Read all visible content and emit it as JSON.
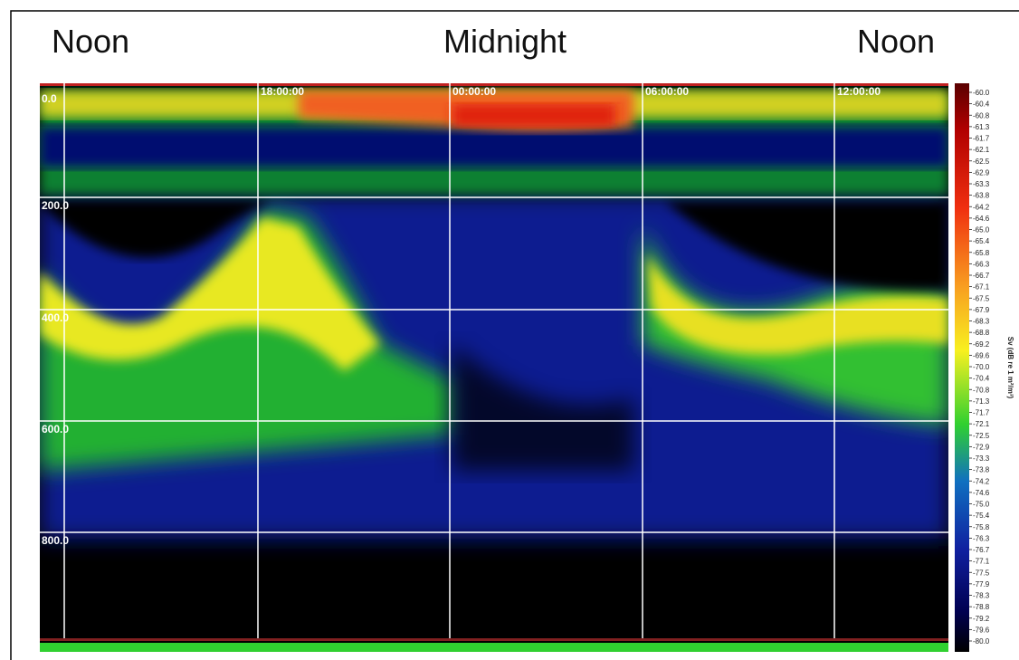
{
  "header_labels": [
    "Noon",
    "Midnight",
    "Noon"
  ],
  "echogram": {
    "depth_labels": [
      "0.0",
      "200.0",
      "400.0",
      "600.0",
      "800.0"
    ],
    "time_labels": [
      "18:00:00",
      "00:00:00",
      "06:00:00",
      "12:00:00"
    ]
  },
  "colorbar": {
    "title": "Sv (dB re 1 m²/m³)",
    "labels": [
      "-60.0",
      "-60.4",
      "-60.8",
      "-61.3",
      "-61.7",
      "-62.1",
      "-62.5",
      "-62.9",
      "-63.3",
      "-63.8",
      "-64.2",
      "-64.6",
      "-65.0",
      "-65.4",
      "-65.8",
      "-66.3",
      "-66.7",
      "-67.1",
      "-67.5",
      "-67.9",
      "-68.3",
      "-68.8",
      "-69.2",
      "-69.6",
      "-70.0",
      "-70.4",
      "-70.8",
      "-71.3",
      "-71.7",
      "-72.1",
      "-72.5",
      "-72.9",
      "-73.3",
      "-73.8",
      "-74.2",
      "-74.6",
      "-75.0",
      "-75.4",
      "-75.8",
      "-76.3",
      "-76.7",
      "-77.1",
      "-77.5",
      "-77.9",
      "-78.3",
      "-78.8",
      "-79.2",
      "-79.6",
      "-80.0"
    ]
  }
}
